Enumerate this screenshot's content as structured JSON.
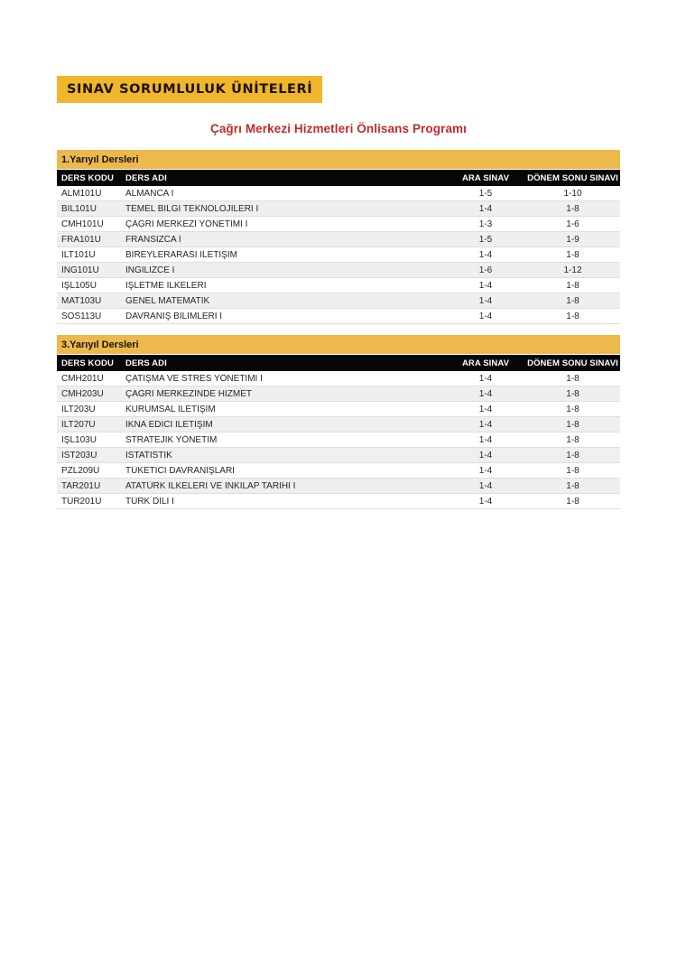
{
  "page": {
    "badge_label": "SINAV SORUMLULUK ÜNİTELERİ",
    "title": "Çağrı Merkezi Hizmetleri Önlisans Programı"
  },
  "colors": {
    "badge_gold": "#f0b62c",
    "section_gold": "#eeb94c",
    "title_red": "#c02b2b",
    "header_black": "#070707",
    "stripe_gray": "#efefef"
  },
  "columns": [
    "DERS KODU",
    "DERS ADI",
    "ARA SINAV",
    "DÖNEM SONU SINAVI"
  ],
  "tables": [
    {
      "section": "1.Yarıyıl Dersleri",
      "rows": [
        [
          "ALM101U",
          "ALMANCA I",
          "1-5",
          "1-10"
        ],
        [
          "BİL101U",
          "TEMEL BİLGİ TEKNOLOJİLERİ I",
          "1-4",
          "1-8"
        ],
        [
          "CMH101U",
          "ÇAĞRI MERKEZİ YÖNETİMİ I",
          "1-3",
          "1-6"
        ],
        [
          "FRA101U",
          "FRANSIZCA I",
          "1-5",
          "1-9"
        ],
        [
          "İLT101U",
          "BİREYLERARASI İLETİŞİM",
          "1-4",
          "1-8"
        ],
        [
          "İNG101U",
          "İNGİLİZCE I",
          "1-6",
          "1-12"
        ],
        [
          "İŞL105U",
          "İŞLETME İLKELERİ",
          "1-4",
          "1-8"
        ],
        [
          "MAT103U",
          "GENEL MATEMATİK",
          "1-4",
          "1-8"
        ],
        [
          "SOS113U",
          "DAVRANIŞ BİLİMLERİ I",
          "1-4",
          "1-8"
        ]
      ]
    },
    {
      "section": "3.Yarıyıl Dersleri",
      "rows": [
        [
          "CMH201U",
          "ÇATIŞMA VE STRES YÖNETİMİ I",
          "1-4",
          "1-8"
        ],
        [
          "CMH203U",
          "ÇAĞRI MERKEZİNDE HİZMET",
          "1-4",
          "1-8"
        ],
        [
          "İLT203U",
          "KURUMSAL İLETİŞİM",
          "1-4",
          "1-8"
        ],
        [
          "İLT207U",
          "İKNA EDİCİ İLETİŞİM",
          "1-4",
          "1-8"
        ],
        [
          "İŞL103U",
          "STRATEJİK YÖNETİM",
          "1-4",
          "1-8"
        ],
        [
          "İST203U",
          "İSTATİSTİK",
          "1-4",
          "1-8"
        ],
        [
          "PZL209U",
          "TÜKETİCİ DAVRANIŞLARI",
          "1-4",
          "1-8"
        ],
        [
          "TAR201U",
          "ATATÜRK İLKELERİ VE İNKILAP TARİHİ I",
          "1-4",
          "1-8"
        ],
        [
          "TÜR201U",
          "TÜRK DİLİ I",
          "1-4",
          "1-8"
        ]
      ]
    }
  ]
}
